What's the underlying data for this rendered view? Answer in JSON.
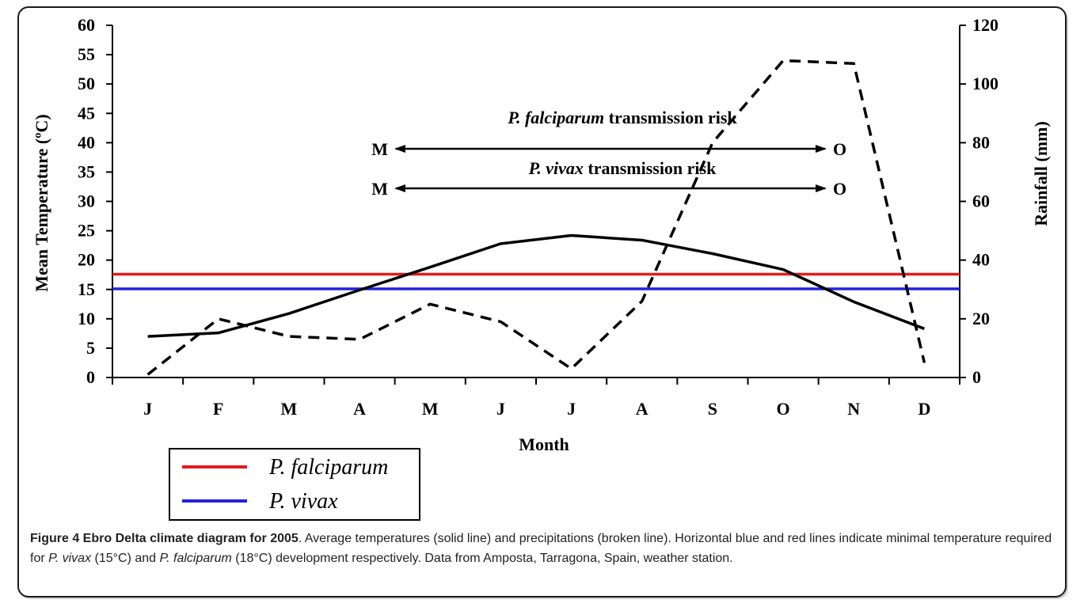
{
  "chart_data": {
    "type": "line",
    "categories": [
      "J",
      "F",
      "M",
      "A",
      "M",
      "J",
      "J",
      "A",
      "S",
      "O",
      "N",
      "D"
    ],
    "xlabel": "Month",
    "ylabel": "Mean Temperature (ºC)",
    "y2label": "Rainfall (mm)",
    "ylim": [
      0,
      60
    ],
    "y2lim": [
      0,
      120
    ],
    "yticks": [
      0,
      5,
      10,
      15,
      20,
      25,
      30,
      35,
      40,
      45,
      50,
      55,
      60
    ],
    "y2ticks": [
      0,
      20,
      40,
      60,
      80,
      100,
      120
    ],
    "series": [
      {
        "style": "solid",
        "axis": "left",
        "values": [
          7,
          7.6,
          10.9,
          14.9,
          18.8,
          22.8,
          24.2,
          23.4,
          21.1,
          18.4,
          12.9,
          8.3
        ]
      },
      {
        "style": "dashed",
        "axis": "right",
        "values": [
          1,
          20,
          14,
          13,
          25,
          19,
          3,
          26,
          80,
          108,
          107,
          5
        ]
      }
    ],
    "thresholds": [
      {
        "value": 17.6,
        "color": "#e31b1b"
      },
      {
        "value": 15.1,
        "color": "#2222dd"
      }
    ],
    "annotations": [
      {
        "label_italic": "P. falciparum",
        "label_rest": " transmission  risk",
        "start": "M",
        "end": "O"
      },
      {
        "label_italic": "P. vivax",
        "label_rest": " transmission risk",
        "start": "M",
        "end": "O"
      }
    ],
    "legend": [
      {
        "label": "P. falciparum",
        "color": "#e31b1b"
      },
      {
        "label": "P. vivax",
        "color": "#2222dd"
      }
    ],
    "legend_position": "bottom-left"
  },
  "caption": {
    "title": "Figure 4 Ebro Delta climate diagram for 2005",
    "body_1": ". Average temperatures (solid line) and precipitations (broken line). Horizontal blue and red lines indicate minimal temperature required for ",
    "italic_1": "P. vivax",
    "body_2": " (15°C) and ",
    "italic_2": "P. falciparum",
    "body_3": " (18°C) development respectively. Data from Amposta, Tarragona, Spain, weather station."
  }
}
